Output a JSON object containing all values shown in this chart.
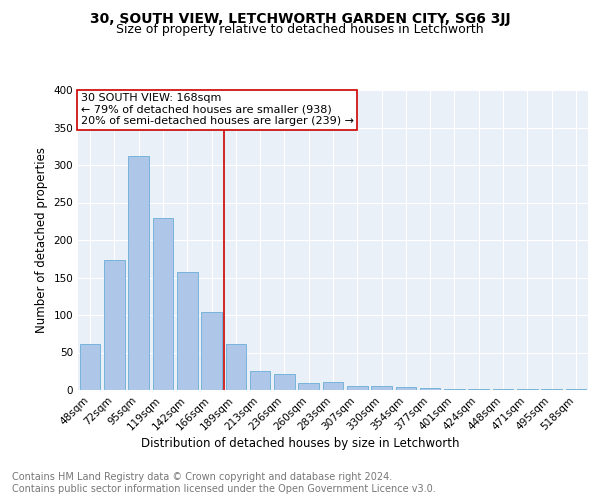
{
  "title": "30, SOUTH VIEW, LETCHWORTH GARDEN CITY, SG6 3JJ",
  "subtitle": "Size of property relative to detached houses in Letchworth",
  "xlabel": "Distribution of detached houses by size in Letchworth",
  "ylabel": "Number of detached properties",
  "categories": [
    "48sqm",
    "72sqm",
    "95sqm",
    "119sqm",
    "142sqm",
    "166sqm",
    "189sqm",
    "213sqm",
    "236sqm",
    "260sqm",
    "283sqm",
    "307sqm",
    "330sqm",
    "354sqm",
    "377sqm",
    "401sqm",
    "424sqm",
    "448sqm",
    "471sqm",
    "495sqm",
    "518sqm"
  ],
  "values": [
    62,
    173,
    312,
    229,
    158,
    104,
    61,
    26,
    21,
    9,
    11,
    6,
    6,
    4,
    3,
    2,
    2,
    1,
    2,
    1,
    2
  ],
  "bar_color": "#aec6e8",
  "bar_edge_color": "#6aaed6",
  "highlight_bar_index": 5,
  "annotation_box_text": "30 SOUTH VIEW: 168sqm\n← 79% of detached houses are smaller (938)\n20% of semi-detached houses are larger (239) →",
  "annotation_box_facecolor": "#ffffff",
  "annotation_box_edgecolor": "#cc0000",
  "vline_color": "#cc0000",
  "ylim": [
    0,
    400
  ],
  "yticks": [
    0,
    50,
    100,
    150,
    200,
    250,
    300,
    350,
    400
  ],
  "footer_text": "Contains HM Land Registry data © Crown copyright and database right 2024.\nContains public sector information licensed under the Open Government Licence v3.0.",
  "plot_bg_color": "#eaf0f8",
  "grid_color": "#ffffff",
  "title_fontsize": 10,
  "subtitle_fontsize": 9,
  "axis_label_fontsize": 8.5,
  "tick_fontsize": 7.5,
  "footer_fontsize": 7,
  "annotation_fontsize": 8
}
